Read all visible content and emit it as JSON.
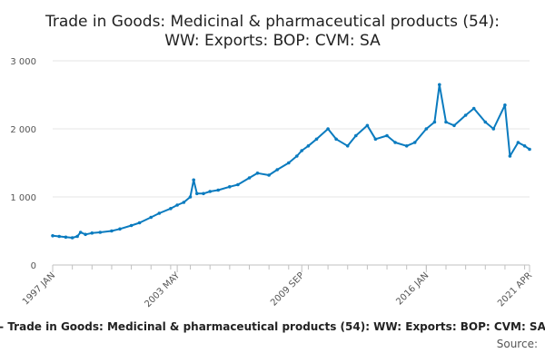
{
  "chart_data": {
    "type": "line",
    "title_lines": [
      "Trade in Goods: Medicinal & pharmaceutical products (54):",
      "WW: Exports: BOP: CVM: SA"
    ],
    "xlabel": "",
    "ylabel": "",
    "ylim": [
      0,
      3000
    ],
    "y_ticks": [
      0,
      1000,
      2000,
      3000
    ],
    "y_tick_labels": [
      "0",
      "1 000",
      "2 000",
      "3 000"
    ],
    "x_range": [
      "1997-01",
      "2021-04"
    ],
    "x_ticks": [
      {
        "date": "1997-01",
        "label": "1997 JAN"
      },
      {
        "date": "2003-05",
        "label": "2003 MAY"
      },
      {
        "date": "2009-09",
        "label": "2009 SEP"
      },
      {
        "date": "2016-01",
        "label": "2016 JAN"
      },
      {
        "date": "2021-04",
        "label": "2021 APR"
      }
    ],
    "grid": true,
    "legend": "bottom",
    "series": [
      {
        "name": "- Trade in Goods: Medicinal & pharmaceutical products (54): WW: Exports: BOP: CVM: SA",
        "color": "#0a7bbf",
        "points": [
          [
            "1997-01",
            430
          ],
          [
            "1997-05",
            420
          ],
          [
            "1997-09",
            410
          ],
          [
            "1998-01",
            400
          ],
          [
            "1998-04",
            420
          ],
          [
            "1998-06",
            480
          ],
          [
            "1998-09",
            450
          ],
          [
            "1999-01",
            470
          ],
          [
            "1999-06",
            480
          ],
          [
            "2000-01",
            500
          ],
          [
            "2000-06",
            530
          ],
          [
            "2001-01",
            580
          ],
          [
            "2001-06",
            620
          ],
          [
            "2002-01",
            700
          ],
          [
            "2002-06",
            760
          ],
          [
            "2003-01",
            830
          ],
          [
            "2003-05",
            880
          ],
          [
            "2003-09",
            920
          ],
          [
            "2004-01",
            1000
          ],
          [
            "2004-03",
            1250
          ],
          [
            "2004-05",
            1050
          ],
          [
            "2004-09",
            1050
          ],
          [
            "2005-01",
            1080
          ],
          [
            "2005-06",
            1100
          ],
          [
            "2006-01",
            1150
          ],
          [
            "2006-06",
            1180
          ],
          [
            "2007-01",
            1280
          ],
          [
            "2007-06",
            1350
          ],
          [
            "2008-01",
            1320
          ],
          [
            "2008-06",
            1400
          ],
          [
            "2009-01",
            1500
          ],
          [
            "2009-06",
            1600
          ],
          [
            "2009-09",
            1680
          ],
          [
            "2010-01",
            1750
          ],
          [
            "2010-06",
            1850
          ],
          [
            "2011-01",
            2000
          ],
          [
            "2011-06",
            1850
          ],
          [
            "2012-01",
            1750
          ],
          [
            "2012-06",
            1900
          ],
          [
            "2013-01",
            2050
          ],
          [
            "2013-06",
            1850
          ],
          [
            "2014-01",
            1900
          ],
          [
            "2014-06",
            1800
          ],
          [
            "2015-01",
            1750
          ],
          [
            "2015-06",
            1800
          ],
          [
            "2016-01",
            2000
          ],
          [
            "2016-06",
            2100
          ],
          [
            "2016-09",
            2650
          ],
          [
            "2017-01",
            2100
          ],
          [
            "2017-06",
            2050
          ],
          [
            "2018-01",
            2200
          ],
          [
            "2018-06",
            2300
          ],
          [
            "2019-01",
            2100
          ],
          [
            "2019-06",
            2000
          ],
          [
            "2020-01",
            2350
          ],
          [
            "2020-04",
            1600
          ],
          [
            "2020-09",
            1800
          ],
          [
            "2021-01",
            1750
          ],
          [
            "2021-04",
            1700
          ]
        ]
      }
    ],
    "source_label": "Source:"
  }
}
